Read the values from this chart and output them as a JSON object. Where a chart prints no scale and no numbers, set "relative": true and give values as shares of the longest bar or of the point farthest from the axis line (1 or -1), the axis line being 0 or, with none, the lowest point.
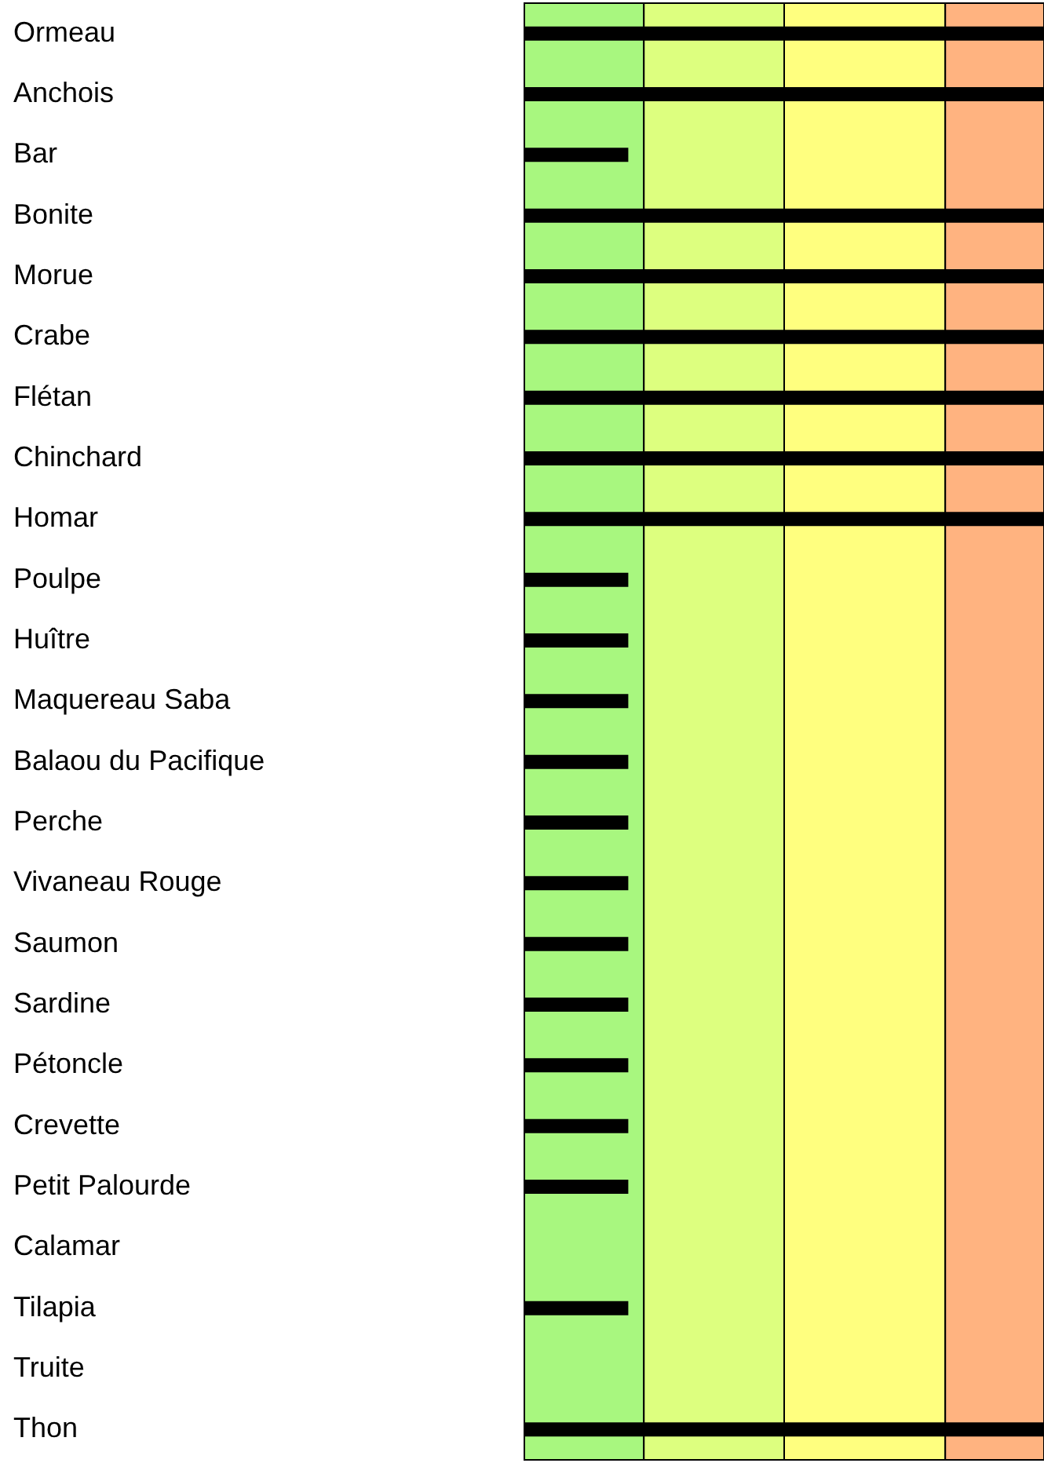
{
  "chart_data": {
    "type": "bar",
    "orientation": "horizontal",
    "relative": true,
    "categories": [
      "Ormeau",
      "Anchois",
      "Bar",
      "Bonite",
      "Morue",
      "Crabe",
      "Flétan",
      "Chinchard",
      "Homar",
      "Poulpe",
      "Huître",
      "Maquereau Saba",
      "Balaou du Pacifique",
      "Perche",
      "Vivaneau Rouge",
      "Saumon",
      "Sardine",
      "Pétoncle",
      "Crevette",
      "Petit Palourde",
      "Calamar",
      "Tilapia",
      "Truite",
      "Thon"
    ],
    "values": [
      1,
      1,
      0.2,
      1,
      1,
      1,
      1,
      1,
      1,
      0.2,
      0.2,
      0.2,
      0.2,
      0.2,
      0.2,
      0.2,
      0.2,
      0.2,
      0.2,
      0.2,
      0,
      0.2,
      0,
      1
    ],
    "color": "#000000",
    "bands": [
      {
        "axis": "x",
        "from": 0,
        "to": 0.23,
        "color": "#a8f77f"
      },
      {
        "axis": "x",
        "from": 0.23,
        "to": 0.5,
        "color": "#ddff7f"
      },
      {
        "axis": "x",
        "from": 0.5,
        "to": 0.81,
        "color": "#ffff7f"
      },
      {
        "axis": "x",
        "from": 0.81,
        "to": 1,
        "color": "#ffb380"
      }
    ]
  }
}
